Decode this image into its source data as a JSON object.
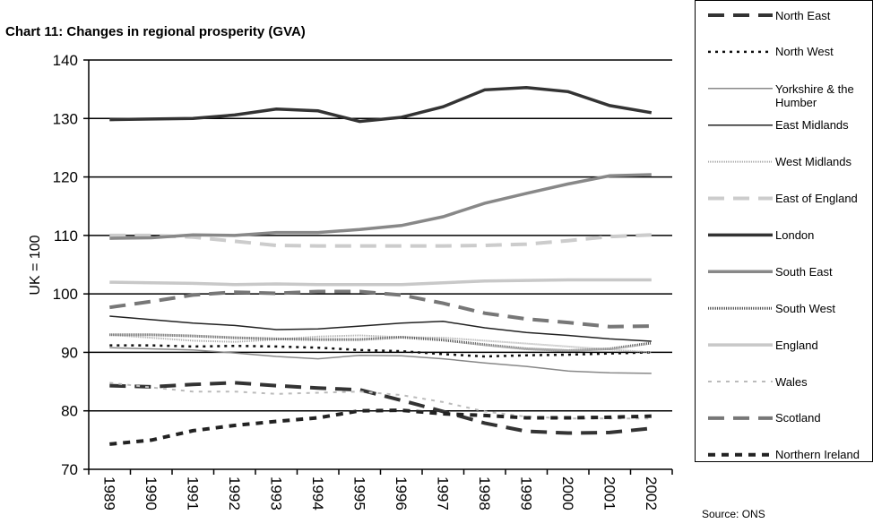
{
  "chart_data": {
    "type": "line",
    "title": "Chart 11: Changes in regional prosperity (GVA)",
    "y_label": "UK = 100",
    "source": "Source: ONS",
    "categories": [
      "1989",
      "1990",
      "1991",
      "1992",
      "1993",
      "1994",
      "1995",
      "1996",
      "1997",
      "1998",
      "1999",
      "2000",
      "2001",
      "2002"
    ],
    "ylim": [
      70,
      140
    ],
    "yticks": [
      70,
      80,
      90,
      100,
      110,
      120,
      130,
      140
    ],
    "grid": true,
    "series": [
      {
        "name": "North East",
        "color": "#333333",
        "width": 4,
        "dash": "18,10",
        "values": [
          84.3,
          84.1,
          84.5,
          84.8,
          84.3,
          83.9,
          83.6,
          81.8,
          79.9,
          77.9,
          76.5,
          76.2,
          76.3,
          77.0
        ]
      },
      {
        "name": "North West",
        "color": "#111111",
        "width": 2.5,
        "dash": "3,5",
        "values": [
          91.2,
          91.2,
          91.0,
          91.1,
          91.0,
          90.8,
          90.4,
          90.2,
          89.7,
          89.3,
          89.5,
          89.6,
          89.8,
          90.0
        ]
      },
      {
        "name": "Yorkshire & the Humber",
        "color": "#888888",
        "width": 1.5,
        "dash": "",
        "values": [
          90.8,
          90.6,
          90.4,
          89.9,
          89.3,
          88.9,
          89.5,
          89.4,
          88.9,
          88.2,
          87.6,
          86.8,
          86.5,
          86.4
        ]
      },
      {
        "name": "East Midlands",
        "color": "#222222",
        "width": 1.5,
        "dash": "",
        "values": [
          96.2,
          95.6,
          95.0,
          94.6,
          93.9,
          94.0,
          94.5,
          95.0,
          95.3,
          94.2,
          93.4,
          92.9,
          92.3,
          91.9
        ]
      },
      {
        "name": "West Midlands",
        "color": "#aaaaaa",
        "width": 2,
        "dash": "1,1",
        "values": [
          93.0,
          92.5,
          92.0,
          91.8,
          92.2,
          92.7,
          92.9,
          92.6,
          92.5,
          92.0,
          91.5,
          91.0,
          90.5,
          90.0
        ]
      },
      {
        "name": "East of England",
        "color": "#cccccc",
        "width": 4,
        "dash": "18,10",
        "values": [
          110.0,
          110.0,
          109.7,
          109.0,
          108.3,
          108.2,
          108.2,
          108.2,
          108.2,
          108.3,
          108.5,
          109.1,
          109.8,
          110.1
        ]
      },
      {
        "name": "London",
        "color": "#333333",
        "width": 3.5,
        "dash": "",
        "values": [
          129.8,
          129.9,
          130.0,
          130.6,
          131.6,
          131.3,
          129.5,
          130.2,
          132.0,
          134.9,
          135.3,
          134.6,
          132.2,
          131.0
        ]
      },
      {
        "name": "South East",
        "color": "#888888",
        "width": 3.5,
        "dash": "",
        "values": [
          109.5,
          109.6,
          110.1,
          110.0,
          110.5,
          110.5,
          111.0,
          111.7,
          113.2,
          115.5,
          117.2,
          118.8,
          120.2,
          120.4
        ]
      },
      {
        "name": "South West",
        "color": "#555555",
        "width": 3,
        "dash": "1,1",
        "values": [
          93.0,
          93.0,
          92.8,
          92.5,
          92.3,
          92.2,
          92.2,
          92.6,
          92.1,
          91.3,
          90.6,
          90.3,
          90.6,
          91.6
        ]
      },
      {
        "name": "England",
        "color": "#c8c8c8",
        "width": 3.5,
        "dash": "",
        "values": [
          102.0,
          101.9,
          101.8,
          101.6,
          101.7,
          101.6,
          101.6,
          101.6,
          101.9,
          102.2,
          102.3,
          102.4,
          102.4,
          102.4
        ]
      },
      {
        "name": "Wales",
        "color": "#bbbbbb",
        "width": 2,
        "dash": "4,6",
        "values": [
          84.8,
          84.0,
          83.3,
          83.3,
          82.9,
          83.1,
          83.3,
          82.7,
          81.5,
          79.9,
          79.0,
          78.7,
          78.7,
          78.7
        ]
      },
      {
        "name": "Scotland",
        "color": "#777777",
        "width": 4,
        "dash": "18,10",
        "values": [
          97.7,
          98.7,
          99.8,
          100.3,
          100.1,
          100.4,
          100.4,
          99.8,
          98.4,
          96.7,
          95.7,
          95.1,
          94.4,
          94.5
        ]
      },
      {
        "name": "Northern Ireland",
        "color": "#222222",
        "width": 4,
        "dash": "8,7",
        "values": [
          74.3,
          75.0,
          76.6,
          77.5,
          78.2,
          78.8,
          80.0,
          80.1,
          79.5,
          79.2,
          78.8,
          78.8,
          78.9,
          79.1
        ]
      }
    ]
  }
}
